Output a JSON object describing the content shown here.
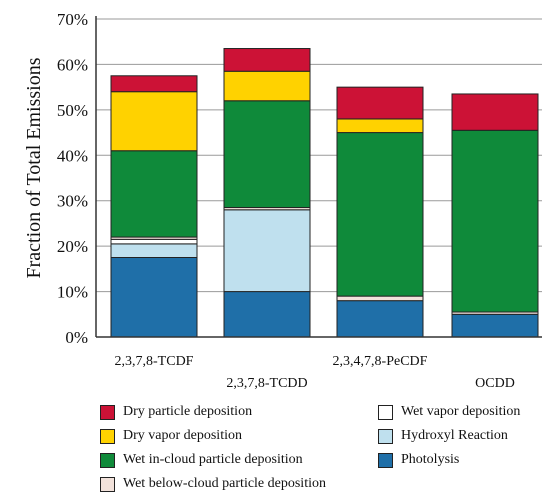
{
  "chart_data": {
    "type": "bar",
    "stacked": true,
    "ylabel": "Fraction of Total Emissions",
    "ylim": [
      0,
      70
    ],
    "yticks": [
      0,
      10,
      20,
      30,
      40,
      50,
      60,
      70
    ],
    "ytick_format": "percent",
    "grid": true,
    "legend_position": "bottom",
    "categories": [
      "2,3,7,8-TCDF",
      "2,3,7,8-TCDD",
      "2,3,4,7,8-PeCDF",
      "OCDD"
    ],
    "series": [
      {
        "name": "Photolysis",
        "color": "#1f6fa8",
        "values": [
          17.5,
          10,
          8,
          5
        ]
      },
      {
        "name": "Hydroxyl Reaction",
        "color": "#bfe0ee",
        "values": [
          3,
          18,
          0,
          0
        ]
      },
      {
        "name": "Wet vapor deposition",
        "color": "#ffffff",
        "values": [
          1,
          0,
          0,
          0
        ]
      },
      {
        "name": "Wet below-cloud particle deposition",
        "color": "#f2e2db",
        "values": [
          0.5,
          0.5,
          1,
          0.5
        ]
      },
      {
        "name": "Wet in-cloud particle deposition",
        "color": "#0f8a3a",
        "values": [
          19,
          23.5,
          36,
          40
        ]
      },
      {
        "name": "Dry vapor deposition",
        "color": "#ffd200",
        "values": [
          13,
          6.5,
          3,
          0
        ]
      },
      {
        "name": "Dry particle deposition",
        "color": "#cc1236",
        "values": [
          3.5,
          5,
          7,
          8
        ]
      }
    ]
  },
  "legend_items": [
    {
      "label": "Dry particle deposition",
      "color": "#cc1236"
    },
    {
      "label": "Wet vapor deposition",
      "color": "#ffffff"
    },
    {
      "label": "Dry vapor deposition",
      "color": "#ffd200"
    },
    {
      "label": "Hydroxyl Reaction",
      "color": "#bfe0ee"
    },
    {
      "label": "Wet in-cloud particle deposition",
      "color": "#0f8a3a"
    },
    {
      "label": "Photolysis",
      "color": "#1f6fa8"
    },
    {
      "label": "Wet below-cloud particle deposition",
      "color": "#f2e2db"
    }
  ]
}
